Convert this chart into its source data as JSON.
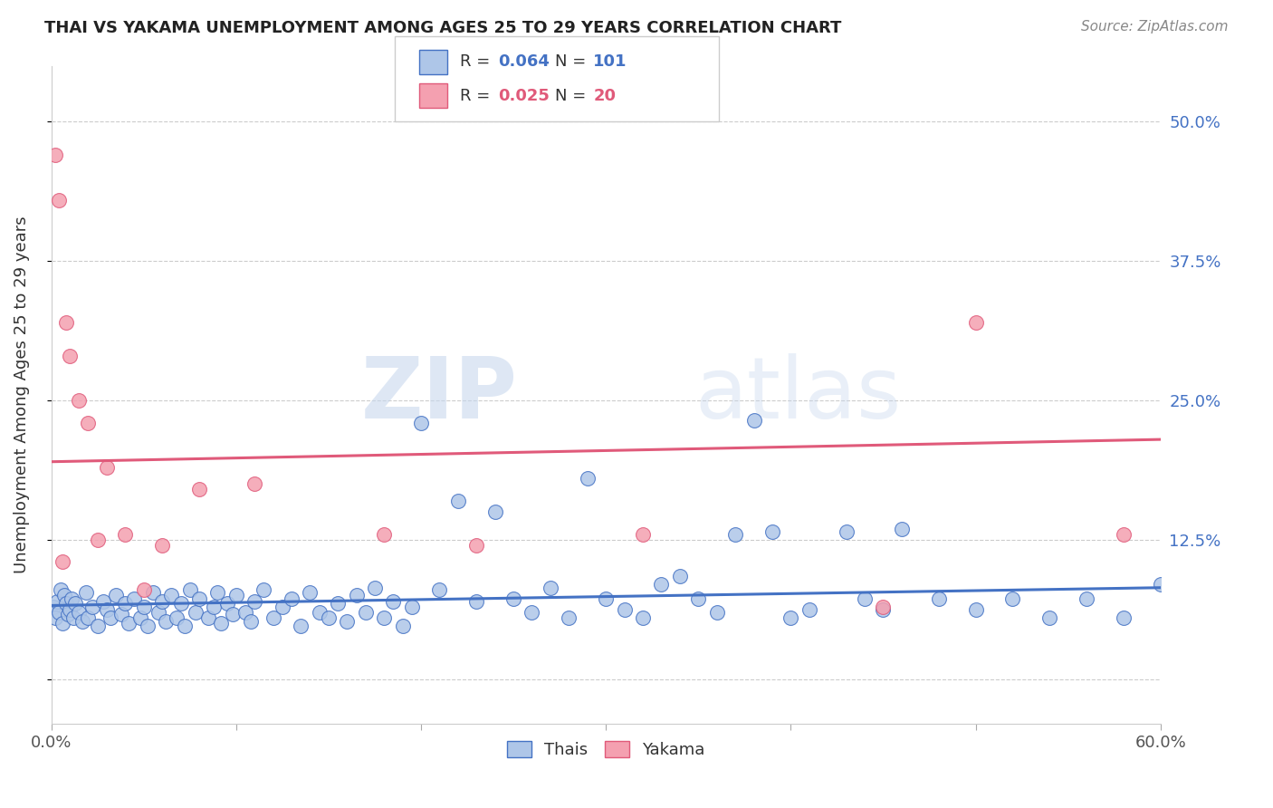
{
  "title": "THAI VS YAKAMA UNEMPLOYMENT AMONG AGES 25 TO 29 YEARS CORRELATION CHART",
  "source": "Source: ZipAtlas.com",
  "ylabel": "Unemployment Among Ages 25 to 29 years",
  "xlim": [
    0.0,
    0.6
  ],
  "ylim": [
    -0.04,
    0.55
  ],
  "xticks": [
    0.0,
    0.1,
    0.2,
    0.3,
    0.4,
    0.5,
    0.6
  ],
  "xticklabels": [
    "0.0%",
    "",
    "",
    "",
    "",
    "",
    "60.0%"
  ],
  "yticks": [
    0.0,
    0.125,
    0.25,
    0.375,
    0.5
  ],
  "yticklabels": [
    "",
    "12.5%",
    "25.0%",
    "37.5%",
    "50.0%"
  ],
  "right_ytick_color": "#4472c4",
  "grid_color": "#cccccc",
  "background_color": "#ffffff",
  "watermark_zip": "ZIP",
  "watermark_atlas": "atlas",
  "thai_color": "#aec6e8",
  "yakama_color": "#f4a0b0",
  "thai_edge_color": "#4472c4",
  "yakama_edge_color": "#e05a7a",
  "thai_line_color": "#4472c4",
  "yakama_line_color": "#e05a7a",
  "legend_thai_R": "0.064",
  "legend_thai_N": "101",
  "legend_yakama_R": "0.025",
  "legend_yakama_N": "20",
  "thai_scatter_x": [
    0.001,
    0.002,
    0.003,
    0.004,
    0.005,
    0.006,
    0.007,
    0.008,
    0.009,
    0.01,
    0.011,
    0.012,
    0.013,
    0.015,
    0.017,
    0.019,
    0.02,
    0.022,
    0.025,
    0.028,
    0.03,
    0.032,
    0.035,
    0.038,
    0.04,
    0.042,
    0.045,
    0.048,
    0.05,
    0.052,
    0.055,
    0.058,
    0.06,
    0.062,
    0.065,
    0.068,
    0.07,
    0.072,
    0.075,
    0.078,
    0.08,
    0.085,
    0.088,
    0.09,
    0.092,
    0.095,
    0.098,
    0.1,
    0.105,
    0.108,
    0.11,
    0.115,
    0.12,
    0.125,
    0.13,
    0.135,
    0.14,
    0.145,
    0.15,
    0.155,
    0.16,
    0.165,
    0.17,
    0.175,
    0.18,
    0.185,
    0.19,
    0.195,
    0.2,
    0.21,
    0.22,
    0.23,
    0.24,
    0.25,
    0.26,
    0.27,
    0.28,
    0.29,
    0.3,
    0.31,
    0.32,
    0.33,
    0.34,
    0.35,
    0.36,
    0.37,
    0.38,
    0.39,
    0.4,
    0.41,
    0.43,
    0.44,
    0.45,
    0.46,
    0.48,
    0.5,
    0.52,
    0.54,
    0.56,
    0.58,
    0.6
  ],
  "thai_scatter_y": [
    0.065,
    0.055,
    0.07,
    0.06,
    0.08,
    0.05,
    0.075,
    0.068,
    0.058,
    0.062,
    0.072,
    0.055,
    0.068,
    0.06,
    0.052,
    0.078,
    0.055,
    0.065,
    0.048,
    0.07,
    0.062,
    0.055,
    0.075,
    0.058,
    0.068,
    0.05,
    0.072,
    0.055,
    0.065,
    0.048,
    0.078,
    0.06,
    0.07,
    0.052,
    0.075,
    0.055,
    0.068,
    0.048,
    0.08,
    0.06,
    0.072,
    0.055,
    0.065,
    0.078,
    0.05,
    0.068,
    0.058,
    0.075,
    0.06,
    0.052,
    0.07,
    0.08,
    0.055,
    0.065,
    0.072,
    0.048,
    0.078,
    0.06,
    0.055,
    0.068,
    0.052,
    0.075,
    0.06,
    0.082,
    0.055,
    0.07,
    0.048,
    0.065,
    0.23,
    0.08,
    0.16,
    0.07,
    0.15,
    0.072,
    0.06,
    0.082,
    0.055,
    0.18,
    0.072,
    0.062,
    0.055,
    0.085,
    0.092,
    0.072,
    0.06,
    0.13,
    0.232,
    0.132,
    0.055,
    0.062,
    0.132,
    0.072,
    0.062,
    0.135,
    0.072,
    0.062,
    0.072,
    0.055,
    0.072,
    0.055,
    0.085
  ],
  "yakama_scatter_x": [
    0.002,
    0.004,
    0.006,
    0.008,
    0.01,
    0.015,
    0.02,
    0.025,
    0.03,
    0.04,
    0.05,
    0.06,
    0.08,
    0.11,
    0.18,
    0.23,
    0.32,
    0.45,
    0.5,
    0.58
  ],
  "yakama_scatter_y": [
    0.47,
    0.43,
    0.105,
    0.32,
    0.29,
    0.25,
    0.23,
    0.125,
    0.19,
    0.13,
    0.08,
    0.12,
    0.17,
    0.175,
    0.13,
    0.12,
    0.13,
    0.065,
    0.32,
    0.13
  ],
  "thai_trendline_x": [
    0.0,
    0.6
  ],
  "thai_trendline_y": [
    0.066,
    0.082
  ],
  "yakama_trendline_x": [
    0.0,
    0.6
  ],
  "yakama_trendline_y": [
    0.195,
    0.215
  ]
}
